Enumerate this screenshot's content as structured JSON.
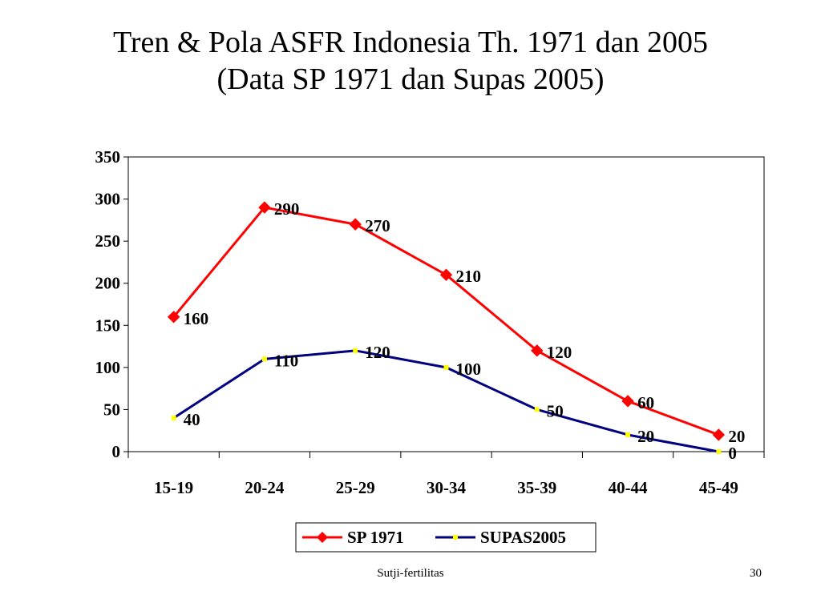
{
  "slide": {
    "title_line1": "Tren & Pola ASFR Indonesia Th. 1971 dan 2005",
    "title_line2": "(Data SP 1971 dan Supas 2005)",
    "footer_text": "Sutji-fertilitas",
    "page_number": "30"
  },
  "chart_data": {
    "type": "line",
    "categories": [
      "15-19",
      "20-24",
      "25-29",
      "30-34",
      "35-39",
      "40-44",
      "45-49"
    ],
    "series": [
      {
        "name": "SP 1971",
        "values": [
          160,
          290,
          270,
          210,
          120,
          60,
          20
        ],
        "color": "#ff0000",
        "marker": "diamond",
        "marker_color": "#ff0000"
      },
      {
        "name": "SUPAS2005",
        "values": [
          40,
          110,
          120,
          100,
          50,
          20,
          0
        ],
        "color": "#000080",
        "marker": "square",
        "marker_color": "#ffff00"
      }
    ],
    "ylim": [
      0,
      350
    ],
    "yticks": [
      0,
      50,
      100,
      150,
      200,
      250,
      300,
      350
    ],
    "xlabel": "",
    "ylabel": "",
    "grid": false,
    "legend": "bottom-center",
    "data_labels": true
  }
}
